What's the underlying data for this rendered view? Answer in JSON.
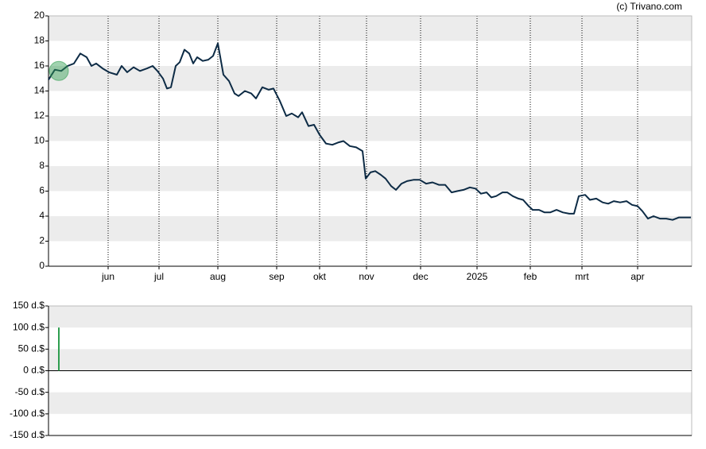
{
  "credit": "(c) Trivano.com",
  "chart_data": [
    {
      "type": "line",
      "x": [
        0,
        8,
        16,
        24,
        32,
        40,
        48,
        54,
        60,
        68,
        76,
        86,
        92,
        99,
        107,
        115,
        124,
        131,
        137,
        144,
        149,
        154,
        160,
        165,
        171,
        177,
        182,
        187,
        194,
        201,
        207,
        213,
        220,
        227,
        234,
        239,
        247,
        255,
        261,
        269,
        277,
        283,
        291,
        299,
        306,
        314,
        319,
        327,
        334,
        341,
        349,
        357,
        365,
        371,
        379,
        387,
        395,
        399,
        405,
        411,
        418,
        424,
        431,
        437,
        444,
        451,
        459,
        467,
        475,
        483,
        491,
        499,
        507,
        514,
        522,
        530,
        537,
        544,
        551,
        557,
        563,
        571,
        577,
        584,
        591,
        597,
        604,
        609,
        617,
        624,
        631,
        639,
        647,
        655,
        661,
        667,
        675,
        681,
        689,
        697,
        704,
        711,
        719,
        727,
        734,
        741,
        747,
        754,
        761,
        769,
        777,
        785,
        793,
        801,
        808
      ],
      "series": [
        {
          "color": "#0d2b45",
          "values": [
            14.9,
            15.7,
            15.6,
            16.0,
            16.2,
            17.0,
            16.7,
            16.0,
            16.2,
            15.8,
            15.5,
            15.3,
            16.0,
            15.5,
            15.9,
            15.6,
            15.8,
            16.0,
            15.6,
            15.0,
            14.2,
            14.3,
            16.0,
            16.3,
            17.3,
            17.0,
            16.2,
            16.7,
            16.4,
            16.5,
            16.8,
            17.8,
            15.3,
            14.8,
            13.8,
            13.6,
            14.0,
            13.8,
            13.4,
            14.3,
            14.1,
            14.2,
            13.2,
            12.0,
            12.2,
            11.9,
            12.3,
            11.2,
            11.3,
            10.5,
            9.8,
            9.7,
            9.9,
            10.0,
            9.6,
            9.5,
            9.2,
            7.0,
            7.5,
            7.6,
            7.3,
            7.0,
            6.4,
            6.1,
            6.6,
            6.8,
            6.9,
            6.9,
            6.6,
            6.7,
            6.5,
            6.5,
            5.9,
            6.0,
            6.1,
            6.3,
            6.2,
            5.8,
            5.9,
            5.5,
            5.6,
            5.9,
            5.9,
            5.6,
            5.4,
            5.3,
            4.8,
            4.5,
            4.5,
            4.3,
            4.3,
            4.5,
            4.3,
            4.2,
            4.2,
            5.6,
            5.7,
            5.3,
            5.4,
            5.1,
            5.0,
            5.2,
            5.1,
            5.2,
            4.9,
            4.8,
            4.4,
            3.8,
            4.0,
            3.8,
            3.8,
            3.7,
            3.9,
            3.9,
            3.9
          ]
        }
      ],
      "xlim": [
        0,
        809
      ],
      "xticks": [
        {
          "value": 75,
          "label": "jun"
        },
        {
          "value": 139,
          "label": "jul"
        },
        {
          "value": 213,
          "label": "aug"
        },
        {
          "value": 287,
          "label": "sep"
        },
        {
          "value": 341,
          "label": "okt"
        },
        {
          "value": 400,
          "label": "nov"
        },
        {
          "value": 468,
          "label": "dec"
        },
        {
          "value": 539,
          "label": "2025"
        },
        {
          "value": 606,
          "label": "feb"
        },
        {
          "value": 671,
          "label": "mrt"
        },
        {
          "value": 741,
          "label": "apr"
        }
      ],
      "ylim": [
        0,
        20
      ],
      "yticks": [
        0,
        2,
        4,
        6,
        8,
        10,
        12,
        14,
        16,
        18,
        20
      ],
      "grid": true
    },
    {
      "type": "bar",
      "x": [
        13
      ],
      "values": [
        100
      ],
      "color": "#2e9e4f",
      "xlim": [
        0,
        809
      ],
      "ylim": [
        -150,
        150
      ],
      "yticks": [
        {
          "value": -150,
          "label": "-150 d.$"
        },
        {
          "value": -100,
          "label": "-100 d.$"
        },
        {
          "value": -50,
          "label": "-50 d.$"
        },
        {
          "value": 0,
          "label": "0 d.$"
        },
        {
          "value": 50,
          "label": "50 d.$"
        },
        {
          "value": 100,
          "label": "100 d.$"
        },
        {
          "value": 150,
          "label": "150 d.$"
        }
      ],
      "grid": true
    }
  ]
}
